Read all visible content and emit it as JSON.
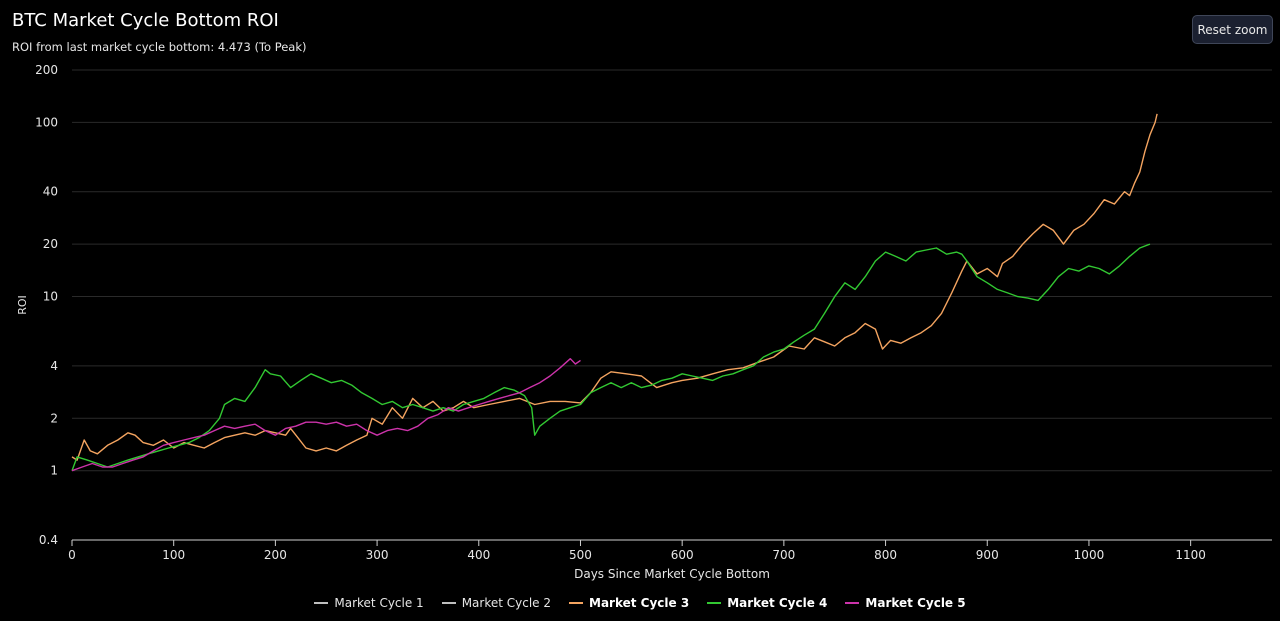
{
  "header": {
    "title": "BTC Market Cycle Bottom ROI",
    "subtitle": "ROI from last market cycle bottom: 4.473 (To Peak)",
    "reset_zoom_label": "Reset zoom"
  },
  "chart_data": {
    "type": "line",
    "xlabel": "Days Since Market Cycle Bottom",
    "ylabel": "ROI",
    "xlim": [
      0,
      1180
    ],
    "ylim": [
      0.4,
      200
    ],
    "y_scale": "log",
    "x_ticks": [
      "0",
      "100",
      "200",
      "300",
      "400",
      "500",
      "600",
      "700",
      "800",
      "900",
      "1000",
      "1100"
    ],
    "y_ticks": [
      "0.4",
      "1",
      "2",
      "4",
      "10",
      "20",
      "40",
      "100",
      "200"
    ],
    "grid": true,
    "legend_position": "bottom",
    "series": [
      {
        "name": "Market Cycle 1",
        "color": "#bfbfbf",
        "points": []
      },
      {
        "name": "Market Cycle 2",
        "color": "#bfbfbf",
        "points": []
      },
      {
        "name": "Market Cycle 3",
        "color": "#f4a460",
        "points": [
          [
            0,
            1.2
          ],
          [
            5,
            1.15
          ],
          [
            12,
            1.5
          ],
          [
            18,
            1.3
          ],
          [
            25,
            1.25
          ],
          [
            35,
            1.4
          ],
          [
            45,
            1.5
          ],
          [
            55,
            1.65
          ],
          [
            62,
            1.6
          ],
          [
            70,
            1.45
          ],
          [
            80,
            1.4
          ],
          [
            90,
            1.5
          ],
          [
            100,
            1.35
          ],
          [
            110,
            1.45
          ],
          [
            120,
            1.4
          ],
          [
            130,
            1.35
          ],
          [
            140,
            1.45
          ],
          [
            150,
            1.55
          ],
          [
            160,
            1.6
          ],
          [
            170,
            1.65
          ],
          [
            180,
            1.6
          ],
          [
            190,
            1.7
          ],
          [
            200,
            1.65
          ],
          [
            210,
            1.6
          ],
          [
            215,
            1.75
          ],
          [
            222,
            1.55
          ],
          [
            230,
            1.35
          ],
          [
            240,
            1.3
          ],
          [
            250,
            1.35
          ],
          [
            260,
            1.3
          ],
          [
            270,
            1.4
          ],
          [
            280,
            1.5
          ],
          [
            290,
            1.6
          ],
          [
            295,
            2.0
          ],
          [
            305,
            1.85
          ],
          [
            315,
            2.3
          ],
          [
            325,
            2.0
          ],
          [
            335,
            2.6
          ],
          [
            345,
            2.3
          ],
          [
            355,
            2.5
          ],
          [
            365,
            2.2
          ],
          [
            375,
            2.3
          ],
          [
            385,
            2.5
          ],
          [
            395,
            2.3
          ],
          [
            410,
            2.4
          ],
          [
            425,
            2.5
          ],
          [
            440,
            2.6
          ],
          [
            455,
            2.4
          ],
          [
            470,
            2.5
          ],
          [
            485,
            2.5
          ],
          [
            500,
            2.45
          ],
          [
            510,
            2.8
          ],
          [
            520,
            3.4
          ],
          [
            530,
            3.7
          ],
          [
            545,
            3.6
          ],
          [
            560,
            3.5
          ],
          [
            575,
            3.0
          ],
          [
            590,
            3.2
          ],
          [
            600,
            3.3
          ],
          [
            615,
            3.4
          ],
          [
            630,
            3.6
          ],
          [
            645,
            3.8
          ],
          [
            660,
            3.9
          ],
          [
            675,
            4.2
          ],
          [
            690,
            4.5
          ],
          [
            705,
            5.2
          ],
          [
            720,
            5.0
          ],
          [
            730,
            5.8
          ],
          [
            740,
            5.5
          ],
          [
            750,
            5.2
          ],
          [
            760,
            5.8
          ],
          [
            770,
            6.2
          ],
          [
            780,
            7.0
          ],
          [
            790,
            6.5
          ],
          [
            797,
            5.0
          ],
          [
            805,
            5.6
          ],
          [
            815,
            5.4
          ],
          [
            825,
            5.8
          ],
          [
            835,
            6.2
          ],
          [
            845,
            6.8
          ],
          [
            855,
            8.0
          ],
          [
            865,
            10.5
          ],
          [
            875,
            14.0
          ],
          [
            880,
            16.0
          ],
          [
            890,
            13.5
          ],
          [
            900,
            14.5
          ],
          [
            910,
            13.0
          ],
          [
            915,
            15.5
          ],
          [
            925,
            17.0
          ],
          [
            935,
            20.0
          ],
          [
            945,
            23.0
          ],
          [
            955,
            26.0
          ],
          [
            965,
            24.0
          ],
          [
            975,
            20.0
          ],
          [
            985,
            24.0
          ],
          [
            995,
            26.0
          ],
          [
            1005,
            30.0
          ],
          [
            1015,
            36.0
          ],
          [
            1025,
            34.0
          ],
          [
            1035,
            40.0
          ],
          [
            1040,
            38.0
          ],
          [
            1045,
            45.0
          ],
          [
            1050,
            52.0
          ],
          [
            1055,
            68.0
          ],
          [
            1060,
            85.0
          ],
          [
            1065,
            100.0
          ],
          [
            1067,
            112.0
          ]
        ]
      },
      {
        "name": "Market Cycle 4",
        "color": "#32c832",
        "points": [
          [
            0,
            1.0
          ],
          [
            5,
            1.2
          ],
          [
            15,
            1.15
          ],
          [
            25,
            1.1
          ],
          [
            35,
            1.05
          ],
          [
            45,
            1.1
          ],
          [
            55,
            1.15
          ],
          [
            65,
            1.2
          ],
          [
            75,
            1.25
          ],
          [
            85,
            1.3
          ],
          [
            95,
            1.35
          ],
          [
            105,
            1.4
          ],
          [
            115,
            1.45
          ],
          [
            125,
            1.55
          ],
          [
            135,
            1.7
          ],
          [
            145,
            2.0
          ],
          [
            150,
            2.4
          ],
          [
            160,
            2.6
          ],
          [
            170,
            2.5
          ],
          [
            180,
            3.0
          ],
          [
            190,
            3.8
          ],
          [
            195,
            3.6
          ],
          [
            205,
            3.5
          ],
          [
            215,
            3.0
          ],
          [
            225,
            3.3
          ],
          [
            235,
            3.6
          ],
          [
            245,
            3.4
          ],
          [
            255,
            3.2
          ],
          [
            265,
            3.3
          ],
          [
            275,
            3.1
          ],
          [
            285,
            2.8
          ],
          [
            295,
            2.6
          ],
          [
            305,
            2.4
          ],
          [
            315,
            2.5
          ],
          [
            325,
            2.3
          ],
          [
            335,
            2.4
          ],
          [
            345,
            2.3
          ],
          [
            355,
            2.2
          ],
          [
            365,
            2.3
          ],
          [
            375,
            2.2
          ],
          [
            385,
            2.4
          ],
          [
            395,
            2.5
          ],
          [
            405,
            2.6
          ],
          [
            415,
            2.8
          ],
          [
            425,
            3.0
          ],
          [
            435,
            2.9
          ],
          [
            445,
            2.7
          ],
          [
            452,
            2.3
          ],
          [
            455,
            1.6
          ],
          [
            460,
            1.8
          ],
          [
            470,
            2.0
          ],
          [
            480,
            2.2
          ],
          [
            490,
            2.3
          ],
          [
            500,
            2.4
          ],
          [
            510,
            2.8
          ],
          [
            520,
            3.0
          ],
          [
            530,
            3.2
          ],
          [
            540,
            3.0
          ],
          [
            550,
            3.2
          ],
          [
            560,
            3.0
          ],
          [
            570,
            3.1
          ],
          [
            580,
            3.3
          ],
          [
            590,
            3.4
          ],
          [
            600,
            3.6
          ],
          [
            610,
            3.5
          ],
          [
            620,
            3.4
          ],
          [
            630,
            3.3
          ],
          [
            640,
            3.5
          ],
          [
            650,
            3.6
          ],
          [
            660,
            3.8
          ],
          [
            670,
            4.0
          ],
          [
            680,
            4.5
          ],
          [
            690,
            4.8
          ],
          [
            700,
            5.0
          ],
          [
            710,
            5.5
          ],
          [
            720,
            6.0
          ],
          [
            730,
            6.5
          ],
          [
            740,
            8.0
          ],
          [
            750,
            10.0
          ],
          [
            760,
            12.0
          ],
          [
            770,
            11.0
          ],
          [
            780,
            13.0
          ],
          [
            790,
            16.0
          ],
          [
            800,
            18.0
          ],
          [
            810,
            17.0
          ],
          [
            820,
            16.0
          ],
          [
            830,
            18.0
          ],
          [
            840,
            18.5
          ],
          [
            850,
            19.0
          ],
          [
            860,
            17.5
          ],
          [
            870,
            18.0
          ],
          [
            875,
            17.5
          ],
          [
            880,
            16.0
          ],
          [
            890,
            13.0
          ],
          [
            900,
            12.0
          ],
          [
            910,
            11.0
          ],
          [
            920,
            10.5
          ],
          [
            930,
            10.0
          ],
          [
            940,
            9.8
          ],
          [
            950,
            9.5
          ],
          [
            960,
            11.0
          ],
          [
            970,
            13.0
          ],
          [
            980,
            14.5
          ],
          [
            990,
            14.0
          ],
          [
            1000,
            15.0
          ],
          [
            1010,
            14.5
          ],
          [
            1020,
            13.5
          ],
          [
            1030,
            15.0
          ],
          [
            1040,
            17.0
          ],
          [
            1050,
            19.0
          ],
          [
            1060,
            20.0
          ]
        ]
      },
      {
        "name": "Market Cycle 5",
        "color": "#cc33aa",
        "points": [
          [
            0,
            1.0
          ],
          [
            10,
            1.05
          ],
          [
            20,
            1.1
          ],
          [
            30,
            1.05
          ],
          [
            40,
            1.05
          ],
          [
            50,
            1.1
          ],
          [
            60,
            1.15
          ],
          [
            70,
            1.2
          ],
          [
            80,
            1.3
          ],
          [
            90,
            1.4
          ],
          [
            100,
            1.45
          ],
          [
            110,
            1.5
          ],
          [
            120,
            1.55
          ],
          [
            130,
            1.6
          ],
          [
            140,
            1.7
          ],
          [
            150,
            1.8
          ],
          [
            160,
            1.75
          ],
          [
            170,
            1.8
          ],
          [
            180,
            1.85
          ],
          [
            190,
            1.7
          ],
          [
            200,
            1.6
          ],
          [
            210,
            1.75
          ],
          [
            220,
            1.8
          ],
          [
            230,
            1.9
          ],
          [
            240,
            1.9
          ],
          [
            250,
            1.85
          ],
          [
            260,
            1.9
          ],
          [
            270,
            1.8
          ],
          [
            280,
            1.85
          ],
          [
            290,
            1.7
          ],
          [
            300,
            1.6
          ],
          [
            310,
            1.7
          ],
          [
            320,
            1.75
          ],
          [
            330,
            1.7
          ],
          [
            340,
            1.8
          ],
          [
            350,
            2.0
          ],
          [
            360,
            2.1
          ],
          [
            370,
            2.3
          ],
          [
            380,
            2.2
          ],
          [
            390,
            2.3
          ],
          [
            400,
            2.4
          ],
          [
            410,
            2.5
          ],
          [
            420,
            2.6
          ],
          [
            430,
            2.7
          ],
          [
            440,
            2.8
          ],
          [
            450,
            3.0
          ],
          [
            460,
            3.2
          ],
          [
            470,
            3.5
          ],
          [
            480,
            3.9
          ],
          [
            490,
            4.4
          ],
          [
            495,
            4.1
          ],
          [
            500,
            4.3
          ]
        ]
      }
    ]
  }
}
